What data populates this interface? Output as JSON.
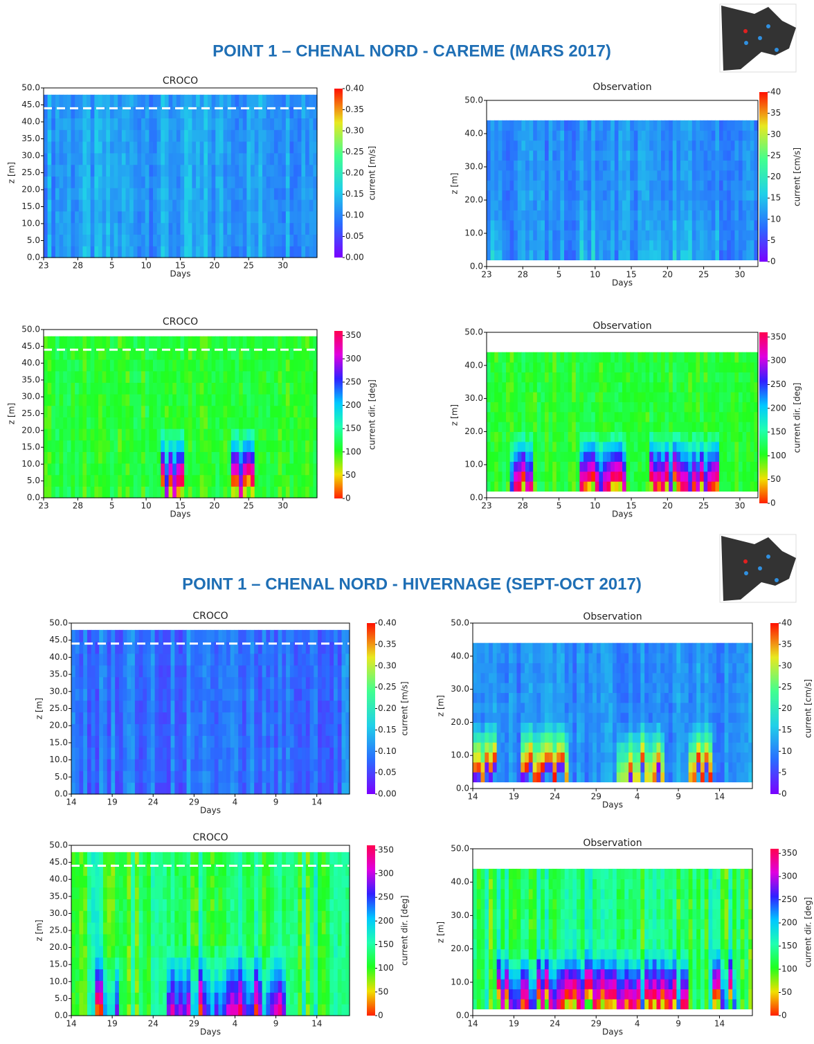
{
  "sections": [
    {
      "title": "POINT 1 – CHENAL NORD - CAREME (MARS 2017)"
    },
    {
      "title": "POINT 1 – CHENAL NORD - HIVERNAGE (SEPT-OCT 2017)"
    }
  ],
  "chart_data": [
    {
      "type": "heatmap",
      "title": "CROCO",
      "x_label": "Days",
      "y_label": "z [m]",
      "colorbar_label": "current [m/s]",
      "xlim": [
        0,
        40
      ],
      "xticks": [
        {
          "value": 0,
          "label": "23"
        },
        {
          "value": 5,
          "label": "28"
        },
        {
          "value": 10,
          "label": "5"
        },
        {
          "value": 15,
          "label": "10"
        },
        {
          "value": 20,
          "label": "15"
        },
        {
          "value": 25,
          "label": "20"
        },
        {
          "value": 30,
          "label": "25"
        },
        {
          "value": 35,
          "label": "30"
        }
      ],
      "ylim": [
        0,
        50
      ],
      "yticks": [
        {
          "value": 0,
          "label": "0.0"
        },
        {
          "value": 5,
          "label": "5.0"
        },
        {
          "value": 10,
          "label": "10.0"
        },
        {
          "value": 15,
          "label": "15.0"
        },
        {
          "value": 20,
          "label": "20.0"
        },
        {
          "value": 25,
          "label": "25.0"
        },
        {
          "value": 30,
          "label": "30.0"
        },
        {
          "value": 35,
          "label": "35.0"
        },
        {
          "value": 40,
          "label": "40.0"
        },
        {
          "value": 45,
          "label": "45.0"
        },
        {
          "value": 50,
          "label": "50.0"
        }
      ],
      "data_range": [
        0,
        48
      ],
      "reference_line": 44,
      "clim": [
        0,
        0.4
      ],
      "cticks": [
        {
          "value": 0,
          "label": "0.00"
        },
        {
          "value": 0.05,
          "label": "0.05"
        },
        {
          "value": 0.1,
          "label": "0.10"
        },
        {
          "value": 0.15,
          "label": "0.15"
        },
        {
          "value": 0.2,
          "label": "0.20"
        },
        {
          "value": 0.25,
          "label": "0.25"
        },
        {
          "value": 0.3,
          "label": "0.30"
        },
        {
          "value": 0.35,
          "label": "0.35"
        },
        {
          "value": 0.4,
          "label": "0.40"
        }
      ],
      "colors": [
        "#7a00ff",
        "#2a6cff",
        "#20d0e8",
        "#40ff90",
        "#e8e820",
        "#ff1000"
      ]
    },
    {
      "type": "heatmap",
      "title": "Observation",
      "x_label": "Days",
      "y_label": "z [m]",
      "colorbar_label": "current [cm/s]",
      "xlim": [
        0,
        37.5
      ],
      "xticks": [
        {
          "value": 0,
          "label": "23"
        },
        {
          "value": 5,
          "label": "28"
        },
        {
          "value": 10,
          "label": "5"
        },
        {
          "value": 15,
          "label": "10"
        },
        {
          "value": 20,
          "label": "15"
        },
        {
          "value": 25,
          "label": "20"
        },
        {
          "value": 30,
          "label": "25"
        },
        {
          "value": 35,
          "label": "30"
        }
      ],
      "ylim": [
        0,
        50
      ],
      "yticks": [
        {
          "value": 0,
          "label": "0.0"
        },
        {
          "value": 10,
          "label": "10.0"
        },
        {
          "value": 20,
          "label": "20.0"
        },
        {
          "value": 30,
          "label": "30.0"
        },
        {
          "value": 40,
          "label": "40.0"
        },
        {
          "value": 50,
          "label": "50.0"
        }
      ],
      "data_range": [
        2,
        44
      ],
      "clim": [
        0,
        40
      ],
      "cticks": [
        0,
        5,
        10,
        15,
        20,
        25,
        30,
        35,
        40
      ],
      "colors": [
        "#7a00ff",
        "#2a6cff",
        "#20d0e8",
        "#40ff90",
        "#e8e820",
        "#ff1000"
      ]
    },
    {
      "type": "heatmap",
      "title": "CROCO",
      "x_label": "Days",
      "y_label": "z [m]",
      "colorbar_label": "current dir. [deg]",
      "xlim": [
        0,
        40
      ],
      "xticks": [
        {
          "value": 0,
          "label": "23"
        },
        {
          "value": 5,
          "label": "28"
        },
        {
          "value": 10,
          "label": "5"
        },
        {
          "value": 15,
          "label": "10"
        },
        {
          "value": 20,
          "label": "15"
        },
        {
          "value": 25,
          "label": "20"
        },
        {
          "value": 30,
          "label": "25"
        },
        {
          "value": 35,
          "label": "30"
        }
      ],
      "ylim": [
        0,
        50
      ],
      "yticks": [
        {
          "value": 0,
          "label": "0.0"
        },
        {
          "value": 5,
          "label": "5.0"
        },
        {
          "value": 10,
          "label": "10.0"
        },
        {
          "value": 15,
          "label": "15.0"
        },
        {
          "value": 20,
          "label": "20.0"
        },
        {
          "value": 25,
          "label": "25.0"
        },
        {
          "value": 30,
          "label": "30.0"
        },
        {
          "value": 35,
          "label": "35.0"
        },
        {
          "value": 40,
          "label": "40.0"
        },
        {
          "value": 45,
          "label": "45.0"
        },
        {
          "value": 50,
          "label": "50.0"
        }
      ],
      "data_range": [
        0,
        48
      ],
      "reference_line": 44,
      "clim": [
        0,
        360
      ],
      "cticks": [
        0,
        50,
        100,
        150,
        200,
        250,
        300,
        350
      ],
      "colors": [
        "#ff2000",
        "#f0e000",
        "#20ff20",
        "#20ffb0",
        "#00c8ff",
        "#3020ff",
        "#e000e0",
        "#ff0050"
      ]
    },
    {
      "type": "heatmap",
      "title": "Observation",
      "x_label": "Days",
      "y_label": "z [m]",
      "colorbar_label": "current dir. [deg]",
      "xlim": [
        0,
        37.5
      ],
      "xticks": [
        {
          "value": 0,
          "label": "23"
        },
        {
          "value": 5,
          "label": "28"
        },
        {
          "value": 10,
          "label": "5"
        },
        {
          "value": 15,
          "label": "10"
        },
        {
          "value": 20,
          "label": "15"
        },
        {
          "value": 25,
          "label": "20"
        },
        {
          "value": 30,
          "label": "25"
        },
        {
          "value": 35,
          "label": "30"
        }
      ],
      "ylim": [
        0,
        50
      ],
      "yticks": [
        {
          "value": 0,
          "label": "0.0"
        },
        {
          "value": 10,
          "label": "10.0"
        },
        {
          "value": 20,
          "label": "20.0"
        },
        {
          "value": 30,
          "label": "30.0"
        },
        {
          "value": 40,
          "label": "40.0"
        },
        {
          "value": 50,
          "label": "50.0"
        }
      ],
      "data_range": [
        2,
        44
      ],
      "clim": [
        0,
        360
      ],
      "cticks": [
        0,
        50,
        100,
        150,
        200,
        250,
        300,
        350
      ],
      "colors": [
        "#ff2000",
        "#f0e000",
        "#20ff20",
        "#20ffb0",
        "#00c8ff",
        "#3020ff",
        "#e000e0",
        "#ff0050"
      ]
    },
    {
      "type": "heatmap",
      "title": "CROCO",
      "x_label": "Days",
      "y_label": "z [m]",
      "colorbar_label": "current [m/s]",
      "xlim": [
        0,
        34
      ],
      "xticks": [
        {
          "value": 0,
          "label": "14"
        },
        {
          "value": 5,
          "label": "19"
        },
        {
          "value": 10,
          "label": "24"
        },
        {
          "value": 15,
          "label": "29"
        },
        {
          "value": 20,
          "label": "4"
        },
        {
          "value": 25,
          "label": "9"
        },
        {
          "value": 30,
          "label": "14"
        }
      ],
      "ylim": [
        0,
        50
      ],
      "yticks": [
        {
          "value": 0,
          "label": "0.0"
        },
        {
          "value": 5,
          "label": "5.0"
        },
        {
          "value": 10,
          "label": "10.0"
        },
        {
          "value": 15,
          "label": "15.0"
        },
        {
          "value": 20,
          "label": "20.0"
        },
        {
          "value": 25,
          "label": "25.0"
        },
        {
          "value": 30,
          "label": "30.0"
        },
        {
          "value": 35,
          "label": "35.0"
        },
        {
          "value": 40,
          "label": "40.0"
        },
        {
          "value": 45,
          "label": "45.0"
        },
        {
          "value": 50,
          "label": "50.0"
        }
      ],
      "data_range": [
        0,
        48
      ],
      "reference_line": 44,
      "clim": [
        0,
        0.4
      ],
      "cticks": [
        {
          "value": 0,
          "label": "0.00"
        },
        {
          "value": 0.05,
          "label": "0.05"
        },
        {
          "value": 0.1,
          "label": "0.10"
        },
        {
          "value": 0.15,
          "label": "0.15"
        },
        {
          "value": 0.2,
          "label": "0.20"
        },
        {
          "value": 0.25,
          "label": "0.25"
        },
        {
          "value": 0.3,
          "label": "0.30"
        },
        {
          "value": 0.35,
          "label": "0.35"
        },
        {
          "value": 0.4,
          "label": "0.40"
        }
      ],
      "colors": [
        "#7a00ff",
        "#2a6cff",
        "#20d0e8",
        "#40ff90",
        "#e8e820",
        "#ff1000"
      ]
    },
    {
      "type": "heatmap",
      "title": "Observation",
      "x_label": "Days",
      "y_label": "z [m]",
      "colorbar_label": "current [cm/s]",
      "xlim": [
        0,
        34
      ],
      "xticks": [
        {
          "value": 0,
          "label": "14"
        },
        {
          "value": 5,
          "label": "19"
        },
        {
          "value": 10,
          "label": "24"
        },
        {
          "value": 15,
          "label": "29"
        },
        {
          "value": 20,
          "label": "4"
        },
        {
          "value": 25,
          "label": "9"
        },
        {
          "value": 30,
          "label": "14"
        }
      ],
      "ylim": [
        0,
        50
      ],
      "yticks": [
        {
          "value": 0,
          "label": "0.0"
        },
        {
          "value": 10,
          "label": "10.0"
        },
        {
          "value": 20,
          "label": "20.0"
        },
        {
          "value": 30,
          "label": "30.0"
        },
        {
          "value": 40,
          "label": "40.0"
        },
        {
          "value": 50,
          "label": "50.0"
        }
      ],
      "data_range": [
        2,
        44
      ],
      "clim": [
        0,
        40
      ],
      "cticks": [
        0,
        5,
        10,
        15,
        20,
        25,
        30,
        35,
        40
      ],
      "colors": [
        "#7a00ff",
        "#2a6cff",
        "#20d0e8",
        "#40ff90",
        "#e8e820",
        "#ff1000"
      ]
    },
    {
      "type": "heatmap",
      "title": "CROCO",
      "x_label": "Days",
      "y_label": "z [m]",
      "colorbar_label": "current dir. [deg]",
      "xlim": [
        0,
        34
      ],
      "xticks": [
        {
          "value": 0,
          "label": "14"
        },
        {
          "value": 5,
          "label": "19"
        },
        {
          "value": 10,
          "label": "24"
        },
        {
          "value": 15,
          "label": "29"
        },
        {
          "value": 20,
          "label": "4"
        },
        {
          "value": 25,
          "label": "9"
        },
        {
          "value": 30,
          "label": "14"
        }
      ],
      "ylim": [
        0,
        50
      ],
      "yticks": [
        {
          "value": 0,
          "label": "0.0"
        },
        {
          "value": 5,
          "label": "5.0"
        },
        {
          "value": 10,
          "label": "10.0"
        },
        {
          "value": 15,
          "label": "15.0"
        },
        {
          "value": 20,
          "label": "20.0"
        },
        {
          "value": 25,
          "label": "25.0"
        },
        {
          "value": 30,
          "label": "30.0"
        },
        {
          "value": 35,
          "label": "35.0"
        },
        {
          "value": 40,
          "label": "40.0"
        },
        {
          "value": 45,
          "label": "45.0"
        },
        {
          "value": 50,
          "label": "50.0"
        }
      ],
      "data_range": [
        0,
        48
      ],
      "reference_line": 44,
      "clim": [
        0,
        360
      ],
      "cticks": [
        0,
        50,
        100,
        150,
        200,
        250,
        300,
        350
      ],
      "colors": [
        "#ff2000",
        "#f0e000",
        "#20ff20",
        "#20ffb0",
        "#00c8ff",
        "#3020ff",
        "#e000e0",
        "#ff0050"
      ]
    },
    {
      "type": "heatmap",
      "title": "Observation",
      "x_label": "Days",
      "y_label": "z [m]",
      "colorbar_label": "current dir. [deg]",
      "xlim": [
        0,
        34
      ],
      "xticks": [
        {
          "value": 0,
          "label": "14"
        },
        {
          "value": 5,
          "label": "19"
        },
        {
          "value": 10,
          "label": "24"
        },
        {
          "value": 15,
          "label": "29"
        },
        {
          "value": 20,
          "label": "4"
        },
        {
          "value": 25,
          "label": "9"
        },
        {
          "value": 30,
          "label": "14"
        }
      ],
      "ylim": [
        0,
        50
      ],
      "yticks": [
        {
          "value": 0,
          "label": "0.0"
        },
        {
          "value": 10,
          "label": "10.0"
        },
        {
          "value": 20,
          "label": "20.0"
        },
        {
          "value": 30,
          "label": "30.0"
        },
        {
          "value": 40,
          "label": "40.0"
        },
        {
          "value": 50,
          "label": "50.0"
        }
      ],
      "data_range": [
        2,
        44
      ],
      "clim": [
        0,
        360
      ],
      "cticks": [
        0,
        50,
        100,
        150,
        200,
        250,
        300,
        350
      ],
      "colors": [
        "#ff2000",
        "#f0e000",
        "#20ff20",
        "#20ffb0",
        "#00c8ff",
        "#3020ff",
        "#e000e0",
        "#ff0050"
      ]
    }
  ]
}
